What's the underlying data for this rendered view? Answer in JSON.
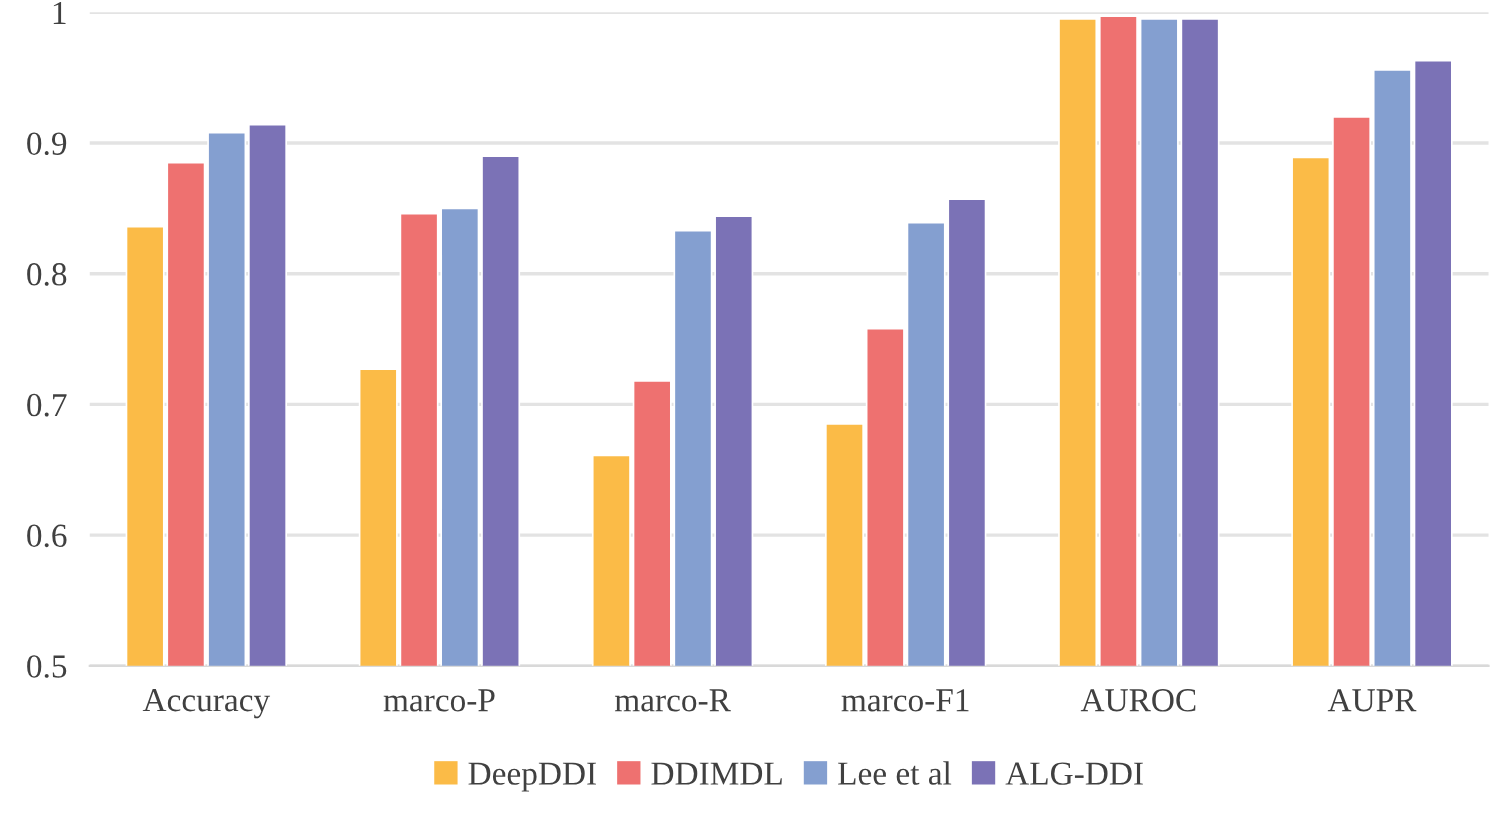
{
  "chart_data": {
    "type": "bar",
    "categories": [
      "Accuracy",
      "marco-P",
      "marco-R",
      "marco-F1",
      "AUROC",
      "AUPR"
    ],
    "series": [
      {
        "name": "DeepDDI",
        "color": "#fbbb47",
        "values": [
          0.836,
          0.727,
          0.661,
          0.685,
          0.995,
          0.889
        ]
      },
      {
        "name": "DDIMDL",
        "color": "#ee7170",
        "values": [
          0.885,
          0.846,
          0.718,
          0.758,
          0.997,
          0.92
        ]
      },
      {
        "name": "Lee et al",
        "color": "#849fd0",
        "values": [
          0.908,
          0.85,
          0.833,
          0.839,
          0.995,
          0.956
        ]
      },
      {
        "name": "ALG-DDI",
        "color": "#7b72b6",
        "values": [
          0.914,
          0.89,
          0.844,
          0.857,
          0.995,
          0.963
        ]
      }
    ],
    "ylim": [
      0.5,
      1
    ],
    "yticks": [
      0.5,
      0.6,
      0.7,
      0.8,
      0.9,
      1
    ],
    "grid": "y",
    "legend": "bottom"
  }
}
